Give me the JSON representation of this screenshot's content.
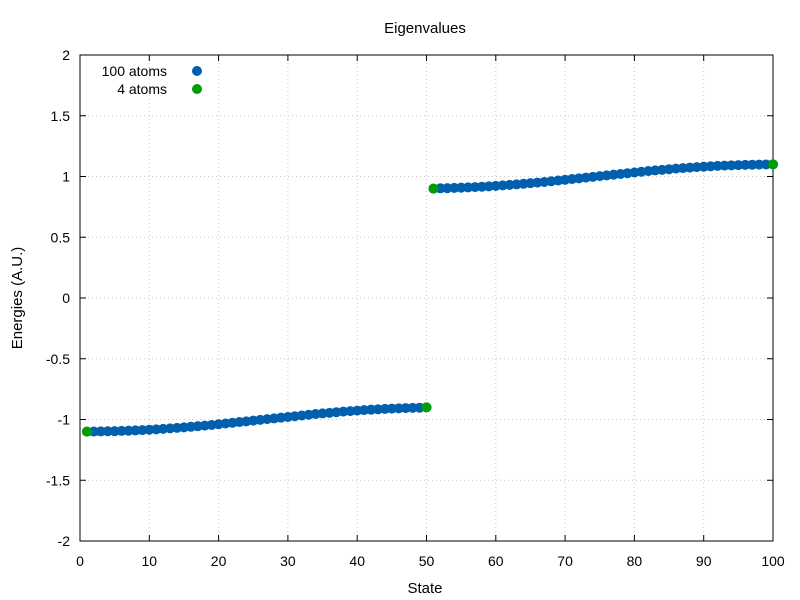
{
  "chart_data": {
    "type": "scatter",
    "title": "Eigenvalues",
    "xlabel": "State",
    "ylabel": "Energies (A.U.)",
    "xlim": [
      0,
      100
    ],
    "ylim": [
      -2,
      2
    ],
    "xticks": [
      0,
      10,
      20,
      30,
      40,
      50,
      60,
      70,
      80,
      90,
      100
    ],
    "yticks": [
      -2,
      -1.5,
      -1,
      -0.5,
      0,
      0.5,
      1,
      1.5,
      2
    ],
    "grid": true,
    "legend_position": "top-left",
    "series": [
      {
        "name": "100 atoms",
        "color": "#0060ad",
        "x": [
          1,
          2,
          3,
          4,
          5,
          6,
          7,
          8,
          9,
          10,
          11,
          12,
          13,
          14,
          15,
          16,
          17,
          18,
          19,
          20,
          21,
          22,
          23,
          24,
          25,
          26,
          27,
          28,
          29,
          30,
          31,
          32,
          33,
          34,
          35,
          36,
          37,
          38,
          39,
          40,
          41,
          42,
          43,
          44,
          45,
          46,
          47,
          48,
          49,
          50,
          51,
          52,
          53,
          54,
          55,
          56,
          57,
          58,
          59,
          60,
          61,
          62,
          63,
          64,
          65,
          66,
          67,
          68,
          69,
          70,
          71,
          72,
          73,
          74,
          75,
          76,
          77,
          78,
          79,
          80,
          81,
          82,
          83,
          84,
          85,
          86,
          87,
          88,
          89,
          90,
          91,
          92,
          93,
          94,
          95,
          96,
          97,
          98,
          99,
          100
        ],
        "y": [
          -1.1,
          -1.099,
          -1.098,
          -1.097,
          -1.096,
          -1.094,
          -1.092,
          -1.09,
          -1.087,
          -1.084,
          -1.081,
          -1.077,
          -1.073,
          -1.069,
          -1.065,
          -1.06,
          -1.055,
          -1.05,
          -1.045,
          -1.039,
          -1.033,
          -1.027,
          -1.021,
          -1.015,
          -1.009,
          -1.003,
          -0.997,
          -0.991,
          -0.985,
          -0.979,
          -0.973,
          -0.967,
          -0.961,
          -0.955,
          -0.95,
          -0.945,
          -0.94,
          -0.935,
          -0.931,
          -0.927,
          -0.923,
          -0.919,
          -0.916,
          -0.913,
          -0.91,
          -0.908,
          -0.906,
          -0.904,
          -0.903,
          -0.9,
          0.9,
          0.903,
          0.904,
          0.906,
          0.908,
          0.91,
          0.913,
          0.916,
          0.919,
          0.923,
          0.927,
          0.931,
          0.935,
          0.94,
          0.945,
          0.95,
          0.955,
          0.961,
          0.967,
          0.973,
          0.979,
          0.985,
          0.991,
          0.997,
          1.003,
          1.009,
          1.015,
          1.021,
          1.027,
          1.033,
          1.039,
          1.045,
          1.05,
          1.055,
          1.06,
          1.065,
          1.069,
          1.073,
          1.077,
          1.081,
          1.084,
          1.087,
          1.09,
          1.092,
          1.094,
          1.096,
          1.097,
          1.098,
          1.099,
          1.1
        ]
      },
      {
        "name": "4 atoms",
        "color": "#009e00",
        "x": [
          1,
          50,
          51,
          100
        ],
        "y": [
          -1.1,
          -0.9,
          0.9,
          1.1
        ]
      }
    ]
  }
}
